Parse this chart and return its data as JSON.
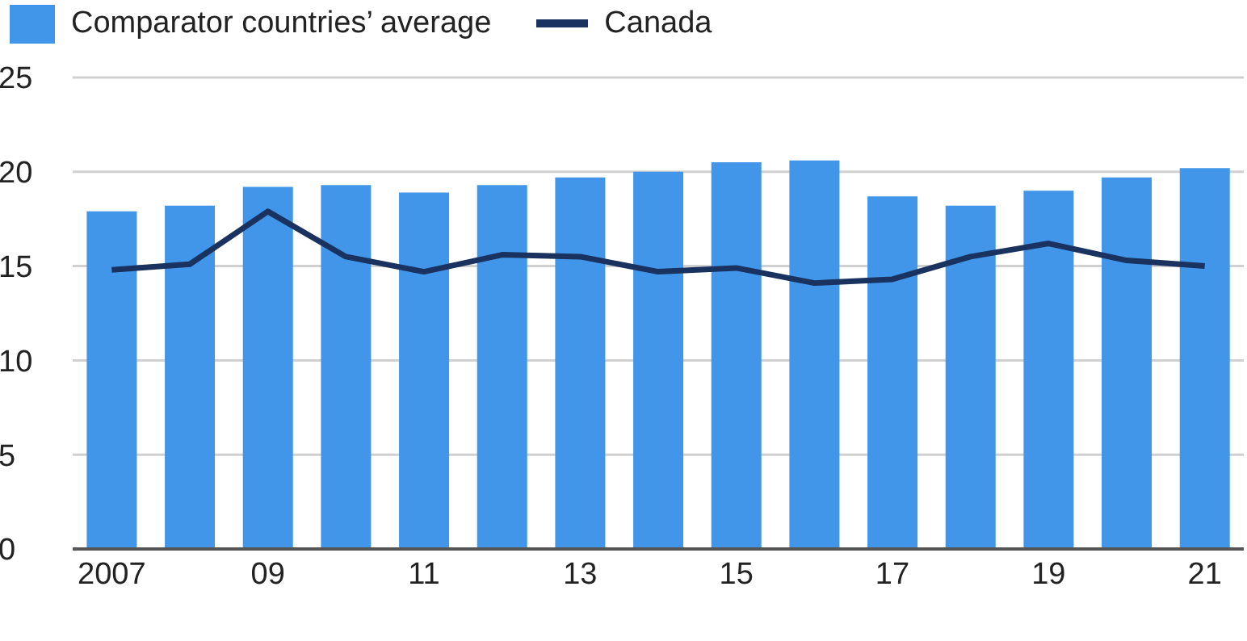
{
  "chart_data": {
    "type": "bar",
    "categories": [
      "2007",
      null,
      "09",
      null,
      "11",
      null,
      "13",
      null,
      "15",
      null,
      "17",
      null,
      "19",
      null,
      "21"
    ],
    "series": [
      {
        "name": "Comparator countries’ average",
        "color": "#4196ea",
        "values": [
          17.9,
          18.2,
          19.2,
          19.3,
          18.9,
          19.3,
          19.7,
          20.0,
          20.5,
          20.6,
          18.7,
          18.2,
          19.0,
          19.7,
          20.2
        ]
      },
      {
        "name": "Canada",
        "type": "line",
        "color": "#1a3260",
        "values": [
          14.8,
          15.1,
          17.9,
          15.5,
          14.7,
          15.6,
          15.5,
          14.7,
          14.9,
          14.1,
          14.3,
          15.5,
          16.2,
          15.3,
          15.0
        ]
      }
    ],
    "ylim": [
      0,
      25
    ],
    "yticks": [
      0,
      5,
      10,
      15,
      20,
      25
    ],
    "grid": "y",
    "legend": "top left"
  }
}
